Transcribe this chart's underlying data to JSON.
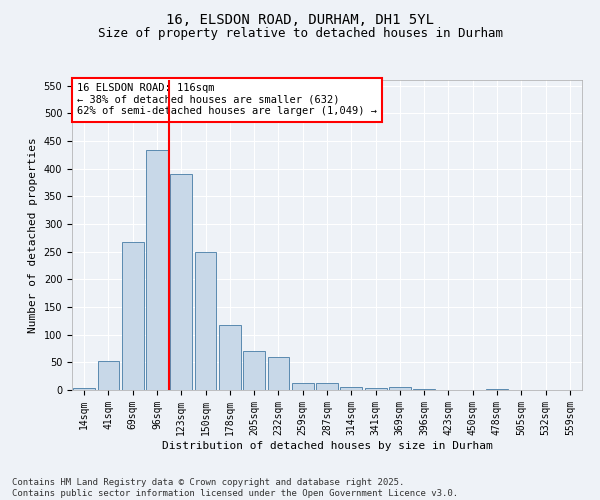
{
  "title": "16, ELSDON ROAD, DURHAM, DH1 5YL",
  "subtitle": "Size of property relative to detached houses in Durham",
  "xlabel": "Distribution of detached houses by size in Durham",
  "ylabel": "Number of detached properties",
  "categories": [
    "14sqm",
    "41sqm",
    "69sqm",
    "96sqm",
    "123sqm",
    "150sqm",
    "178sqm",
    "205sqm",
    "232sqm",
    "259sqm",
    "287sqm",
    "314sqm",
    "341sqm",
    "369sqm",
    "396sqm",
    "423sqm",
    "450sqm",
    "478sqm",
    "505sqm",
    "532sqm",
    "559sqm"
  ],
  "values": [
    3,
    52,
    268,
    433,
    390,
    250,
    117,
    70,
    60,
    12,
    12,
    6,
    4,
    5,
    1,
    0,
    0,
    1,
    0,
    0,
    0
  ],
  "bar_color": "#c8d8e8",
  "bar_edge_color": "#5a8ab0",
  "vline_x": 3.5,
  "vline_color": "red",
  "annotation_text": "16 ELSDON ROAD: 116sqm\n← 38% of detached houses are smaller (632)\n62% of semi-detached houses are larger (1,049) →",
  "annotation_box_color": "white",
  "annotation_box_edge_color": "red",
  "ylim": [
    0,
    560
  ],
  "yticks": [
    0,
    50,
    100,
    150,
    200,
    250,
    300,
    350,
    400,
    450,
    500,
    550
  ],
  "footer": "Contains HM Land Registry data © Crown copyright and database right 2025.\nContains public sector information licensed under the Open Government Licence v3.0.",
  "background_color": "#eef2f7",
  "grid_color": "white",
  "title_fontsize": 10,
  "subtitle_fontsize": 9,
  "axis_label_fontsize": 8,
  "tick_fontsize": 7,
  "footer_fontsize": 6.5,
  "annotation_fontsize": 7.5
}
